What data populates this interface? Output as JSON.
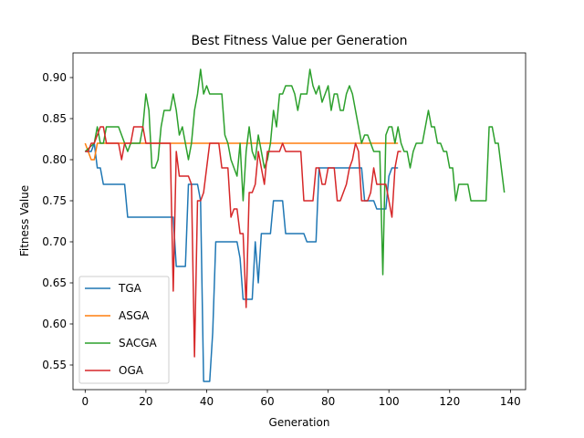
{
  "chart_data": {
    "type": "line",
    "title": "Best Fitness Value per Generation",
    "xlabel": "Generation",
    "ylabel": "Fitness Value",
    "xlim": [
      -4,
      145
    ],
    "ylim": [
      0.52,
      0.93
    ],
    "xticks": [
      0,
      20,
      40,
      60,
      80,
      100,
      120,
      140
    ],
    "yticks": [
      0.55,
      0.6,
      0.65,
      0.7,
      0.75,
      0.8,
      0.85,
      0.9
    ],
    "ytick_labels": [
      "0.55",
      "0.60",
      "0.65",
      "0.70",
      "0.75",
      "0.80",
      "0.85",
      "0.90"
    ],
    "grid": false,
    "legend_position": "lower-left",
    "series": [
      {
        "name": "TGA",
        "color": "#1f77b4",
        "points": [
          [
            0,
            0.81
          ],
          [
            2,
            0.81
          ],
          [
            3,
            0.82
          ],
          [
            4,
            0.79
          ],
          [
            5,
            0.79
          ],
          [
            6,
            0.77
          ],
          [
            13,
            0.77
          ],
          [
            14,
            0.73
          ],
          [
            28,
            0.73
          ],
          [
            29,
            0.73
          ],
          [
            30,
            0.67
          ],
          [
            33,
            0.67
          ],
          [
            34,
            0.77
          ],
          [
            37,
            0.77
          ],
          [
            38,
            0.75
          ],
          [
            39,
            0.53
          ],
          [
            41,
            0.53
          ],
          [
            42,
            0.59
          ],
          [
            43,
            0.7
          ],
          [
            50,
            0.7
          ],
          [
            51,
            0.68
          ],
          [
            52,
            0.63
          ],
          [
            55,
            0.63
          ],
          [
            56,
            0.7
          ],
          [
            57,
            0.65
          ],
          [
            58,
            0.71
          ],
          [
            61,
            0.71
          ],
          [
            62,
            0.75
          ],
          [
            65,
            0.75
          ],
          [
            66,
            0.71
          ],
          [
            72,
            0.71
          ],
          [
            73,
            0.7
          ],
          [
            76,
            0.7
          ],
          [
            77,
            0.79
          ],
          [
            91,
            0.79
          ],
          [
            92,
            0.75
          ],
          [
            95,
            0.75
          ],
          [
            96,
            0.74
          ],
          [
            99,
            0.74
          ],
          [
            100,
            0.78
          ],
          [
            101,
            0.79
          ],
          [
            103,
            0.79
          ]
        ]
      },
      {
        "name": "ASGA",
        "color": "#ff7f0e",
        "points": [
          [
            0,
            0.82
          ],
          [
            1,
            0.81
          ],
          [
            2,
            0.8
          ],
          [
            3,
            0.8
          ],
          [
            4,
            0.82
          ],
          [
            103,
            0.82
          ]
        ]
      },
      {
        "name": "SACGA",
        "color": "#2ca02c",
        "points": [
          [
            0,
            0.81
          ],
          [
            3,
            0.82
          ],
          [
            4,
            0.84
          ],
          [
            5,
            0.82
          ],
          [
            6,
            0.82
          ],
          [
            7,
            0.84
          ],
          [
            11,
            0.84
          ],
          [
            12,
            0.83
          ],
          [
            13,
            0.82
          ],
          [
            14,
            0.81
          ],
          [
            15,
            0.82
          ],
          [
            18,
            0.82
          ],
          [
            19,
            0.84
          ],
          [
            20,
            0.88
          ],
          [
            21,
            0.86
          ],
          [
            22,
            0.79
          ],
          [
            23,
            0.79
          ],
          [
            24,
            0.8
          ],
          [
            25,
            0.84
          ],
          [
            26,
            0.86
          ],
          [
            28,
            0.86
          ],
          [
            29,
            0.88
          ],
          [
            30,
            0.86
          ],
          [
            31,
            0.83
          ],
          [
            32,
            0.84
          ],
          [
            33,
            0.82
          ],
          [
            34,
            0.8
          ],
          [
            35,
            0.82
          ],
          [
            36,
            0.86
          ],
          [
            37,
            0.88
          ],
          [
            38,
            0.91
          ],
          [
            39,
            0.88
          ],
          [
            40,
            0.89
          ],
          [
            41,
            0.88
          ],
          [
            45,
            0.88
          ],
          [
            46,
            0.83
          ],
          [
            47,
            0.82
          ],
          [
            48,
            0.8
          ],
          [
            49,
            0.79
          ],
          [
            50,
            0.78
          ],
          [
            51,
            0.82
          ],
          [
            52,
            0.75
          ],
          [
            53,
            0.81
          ],
          [
            54,
            0.84
          ],
          [
            55,
            0.81
          ],
          [
            56,
            0.8
          ],
          [
            57,
            0.83
          ],
          [
            58,
            0.81
          ],
          [
            59,
            0.79
          ],
          [
            60,
            0.8
          ],
          [
            61,
            0.82
          ],
          [
            62,
            0.86
          ],
          [
            63,
            0.84
          ],
          [
            64,
            0.88
          ],
          [
            65,
            0.88
          ],
          [
            66,
            0.89
          ],
          [
            68,
            0.89
          ],
          [
            69,
            0.88
          ],
          [
            70,
            0.86
          ],
          [
            71,
            0.88
          ],
          [
            73,
            0.88
          ],
          [
            74,
            0.91
          ],
          [
            75,
            0.89
          ],
          [
            76,
            0.88
          ],
          [
            77,
            0.89
          ],
          [
            78,
            0.87
          ],
          [
            79,
            0.88
          ],
          [
            80,
            0.89
          ],
          [
            81,
            0.86
          ],
          [
            82,
            0.88
          ],
          [
            83,
            0.88
          ],
          [
            84,
            0.86
          ],
          [
            85,
            0.86
          ],
          [
            86,
            0.88
          ],
          [
            87,
            0.89
          ],
          [
            88,
            0.88
          ],
          [
            89,
            0.86
          ],
          [
            90,
            0.84
          ],
          [
            91,
            0.82
          ],
          [
            92,
            0.83
          ],
          [
            93,
            0.83
          ],
          [
            94,
            0.82
          ],
          [
            95,
            0.81
          ],
          [
            97,
            0.81
          ],
          [
            98,
            0.66
          ],
          [
            99,
            0.83
          ],
          [
            100,
            0.84
          ],
          [
            101,
            0.84
          ],
          [
            102,
            0.82
          ],
          [
            103,
            0.84
          ],
          [
            104,
            0.82
          ],
          [
            105,
            0.81
          ],
          [
            106,
            0.81
          ],
          [
            107,
            0.79
          ],
          [
            108,
            0.81
          ],
          [
            109,
            0.82
          ],
          [
            111,
            0.82
          ],
          [
            112,
            0.84
          ],
          [
            113,
            0.86
          ],
          [
            114,
            0.84
          ],
          [
            115,
            0.84
          ],
          [
            116,
            0.82
          ],
          [
            117,
            0.82
          ],
          [
            118,
            0.81
          ],
          [
            119,
            0.81
          ],
          [
            120,
            0.79
          ],
          [
            121,
            0.79
          ],
          [
            122,
            0.75
          ],
          [
            123,
            0.77
          ],
          [
            126,
            0.77
          ],
          [
            127,
            0.75
          ],
          [
            132,
            0.75
          ],
          [
            133,
            0.84
          ],
          [
            134,
            0.84
          ],
          [
            135,
            0.82
          ],
          [
            136,
            0.82
          ],
          [
            138,
            0.76
          ]
        ]
      },
      {
        "name": "OGA",
        "color": "#d62728",
        "points": [
          [
            0,
            0.81
          ],
          [
            1,
            0.81
          ],
          [
            2,
            0.82
          ],
          [
            3,
            0.82
          ],
          [
            4,
            0.83
          ],
          [
            5,
            0.84
          ],
          [
            6,
            0.84
          ],
          [
            7,
            0.82
          ],
          [
            11,
            0.82
          ],
          [
            12,
            0.8
          ],
          [
            13,
            0.82
          ],
          [
            15,
            0.82
          ],
          [
            16,
            0.84
          ],
          [
            19,
            0.84
          ],
          [
            20,
            0.82
          ],
          [
            28,
            0.82
          ],
          [
            29,
            0.64
          ],
          [
            30,
            0.81
          ],
          [
            31,
            0.78
          ],
          [
            34,
            0.78
          ],
          [
            35,
            0.77
          ],
          [
            36,
            0.56
          ],
          [
            37,
            0.75
          ],
          [
            38,
            0.75
          ],
          [
            39,
            0.76
          ],
          [
            40,
            0.79
          ],
          [
            41,
            0.82
          ],
          [
            44,
            0.82
          ],
          [
            45,
            0.79
          ],
          [
            47,
            0.79
          ],
          [
            48,
            0.73
          ],
          [
            49,
            0.74
          ],
          [
            50,
            0.74
          ],
          [
            51,
            0.71
          ],
          [
            52,
            0.71
          ],
          [
            53,
            0.62
          ],
          [
            54,
            0.76
          ],
          [
            55,
            0.76
          ],
          [
            56,
            0.77
          ],
          [
            57,
            0.81
          ],
          [
            58,
            0.79
          ],
          [
            59,
            0.77
          ],
          [
            60,
            0.81
          ],
          [
            64,
            0.81
          ],
          [
            65,
            0.82
          ],
          [
            66,
            0.81
          ],
          [
            71,
            0.81
          ],
          [
            72,
            0.75
          ],
          [
            75,
            0.75
          ],
          [
            76,
            0.79
          ],
          [
            77,
            0.79
          ],
          [
            78,
            0.77
          ],
          [
            79,
            0.77
          ],
          [
            80,
            0.79
          ],
          [
            82,
            0.79
          ],
          [
            83,
            0.75
          ],
          [
            84,
            0.75
          ],
          [
            85,
            0.76
          ],
          [
            86,
            0.77
          ],
          [
            87,
            0.79
          ],
          [
            88,
            0.8
          ],
          [
            89,
            0.82
          ],
          [
            90,
            0.81
          ],
          [
            91,
            0.75
          ],
          [
            93,
            0.75
          ],
          [
            94,
            0.76
          ],
          [
            95,
            0.79
          ],
          [
            96,
            0.77
          ],
          [
            97,
            0.77
          ],
          [
            98,
            0.77
          ],
          [
            99,
            0.77
          ],
          [
            100,
            0.75
          ],
          [
            101,
            0.73
          ],
          [
            102,
            0.79
          ],
          [
            103,
            0.81
          ],
          [
            104,
            0.81
          ]
        ]
      }
    ]
  }
}
